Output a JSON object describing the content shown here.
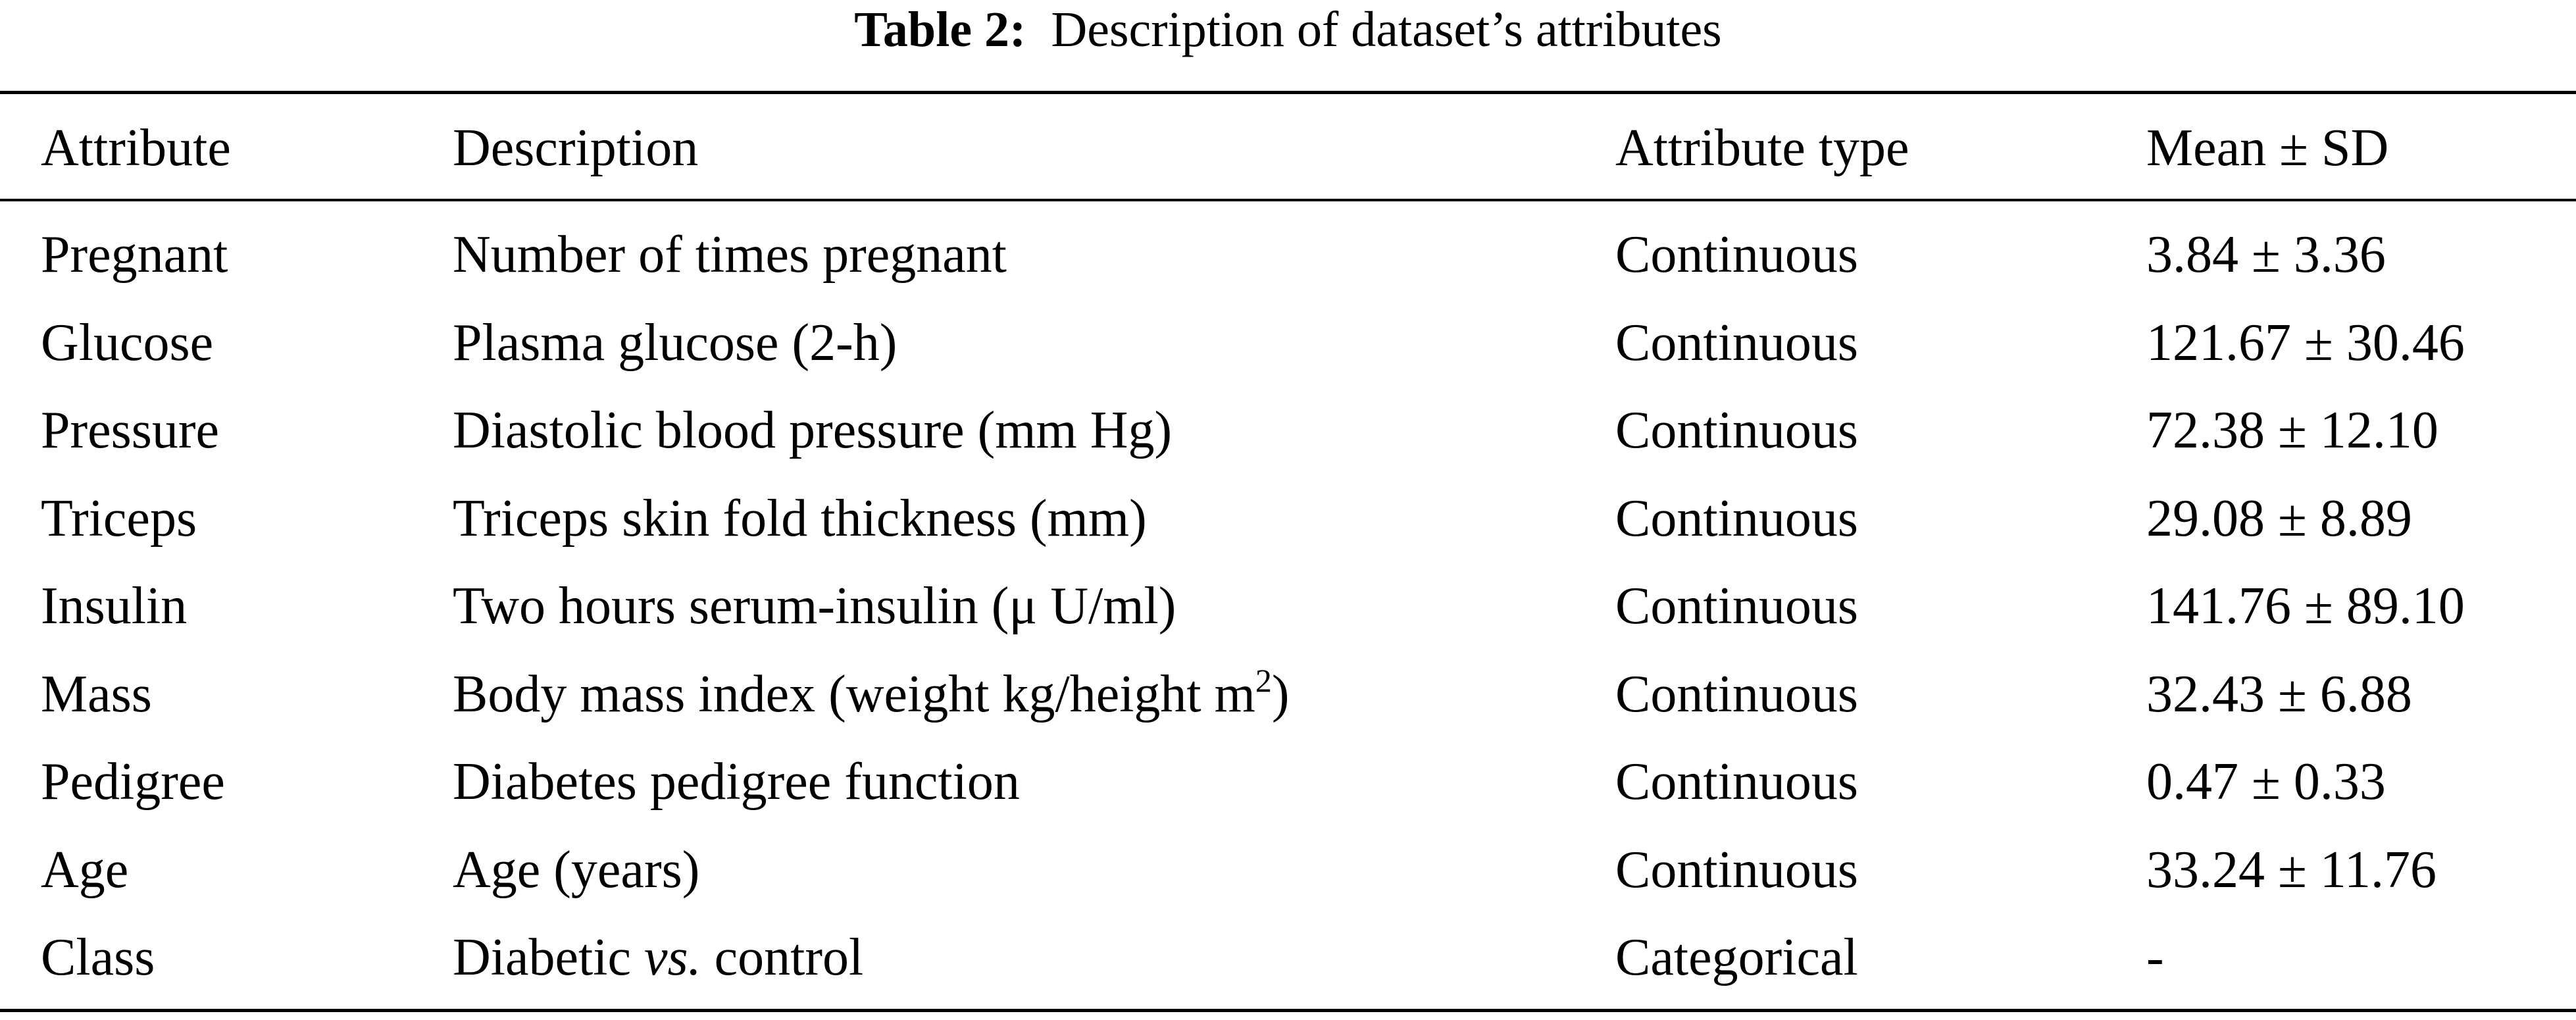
{
  "title": {
    "label": "Table 2:",
    "text": "Description of dataset’s attributes"
  },
  "table": {
    "header": [
      "Attribute",
      "Description",
      "Attribute type",
      "Mean ± SD"
    ],
    "rows": [
      [
        "Pregnant",
        "Number of times pregnant",
        "Continuous",
        "3.84 ± 3.36"
      ],
      [
        "Glucose",
        "Plasma glucose (2-h)",
        "Continuous",
        "121.67 ± 30.46"
      ],
      [
        "Pressure",
        "Diastolic blood pressure (mm Hg)",
        "Continuous",
        "72.38 ± 12.10"
      ],
      [
        "Triceps",
        "Triceps skin fold thickness (mm)",
        "Continuous",
        "29.08 ± 8.89"
      ],
      [
        "Insulin",
        "Two hours serum-insulin (μ U/ml)",
        "Continuous",
        "141.76 ± 89.10"
      ],
      [
        "Mass",
        [
          "Body mass index (weight kg/height m",
          "2",
          ")"
        ],
        "Continuous",
        "32.43 ± 6.88"
      ],
      [
        "Pedigree",
        "Diabetes pedigree function",
        "Continuous",
        "0.47 ± 0.33"
      ],
      [
        "Age",
        "Age (years)",
        "Continuous",
        "33.24 ± 11.76"
      ],
      [
        "Class",
        [
          "Diabetic ",
          "vs.",
          " control"
        ],
        "Categorical",
        "-"
      ]
    ]
  }
}
